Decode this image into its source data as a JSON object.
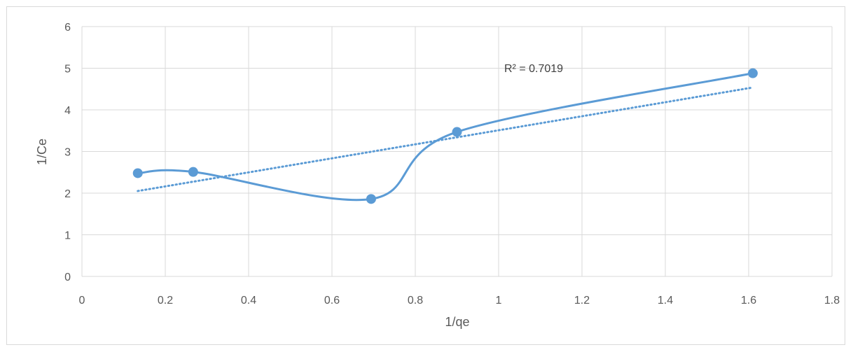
{
  "chart_data": {
    "type": "scatter",
    "title": "",
    "xlabel": "1/qe",
    "ylabel": "1/Ce",
    "xlim": [
      0,
      1.8
    ],
    "ylim": [
      0,
      6
    ],
    "x_ticks": [
      "0",
      "0.2",
      "0.4",
      "0.6",
      "0.8",
      "1",
      "1.2",
      "1.4",
      "1.6",
      "1.8"
    ],
    "y_ticks": [
      "0",
      "1",
      "2",
      "3",
      "4",
      "5",
      "6"
    ],
    "grid": true,
    "smoothed_line": true,
    "series": [
      {
        "x": [
          0.134,
          0.267,
          0.694,
          0.9,
          1.61
        ],
        "y": [
          2.48,
          2.51,
          1.86,
          3.47,
          4.88
        ]
      }
    ],
    "trendline": {
      "style": "dotted",
      "label": "R² = 0.7019"
    },
    "colors": {
      "series": "#5b9bd5",
      "grid": "#d9d9d9",
      "text": "#595959"
    }
  }
}
